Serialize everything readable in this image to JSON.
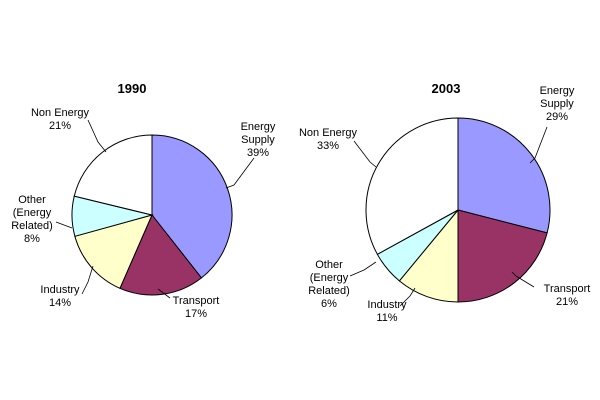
{
  "chart_data": [
    {
      "type": "pie",
      "title": "1990",
      "slices": [
        {
          "name": "Energy Supply",
          "label_lines": [
            "Energy",
            "Supply"
          ],
          "value": 39,
          "value_label": "39%",
          "color": "#9999ff"
        },
        {
          "name": "Transport",
          "label_lines": [
            "Transport"
          ],
          "value": 17,
          "value_label": "17%",
          "color": "#993366"
        },
        {
          "name": "Industry",
          "label_lines": [
            "Industry"
          ],
          "value": 14,
          "value_label": "14%",
          "color": "#ffffcc"
        },
        {
          "name": "Other (Energy Related)",
          "label_lines": [
            "Other",
            "(Energy",
            "Related)"
          ],
          "value": 8,
          "value_label": "8%",
          "color": "#ccffff"
        },
        {
          "name": "Non Energy",
          "label_lines": [
            "Non Energy"
          ],
          "value": 21,
          "value_label": "21%",
          "color": "#ffffff"
        }
      ]
    },
    {
      "type": "pie",
      "title": "2003",
      "slices": [
        {
          "name": "Energy Supply",
          "label_lines": [
            "Energy",
            "Supply"
          ],
          "value": 29,
          "value_label": "29%",
          "color": "#9999ff"
        },
        {
          "name": "Transport",
          "label_lines": [
            "Transport"
          ],
          "value": 21,
          "value_label": "21%",
          "color": "#993366"
        },
        {
          "name": "Industry",
          "label_lines": [
            "Industry"
          ],
          "value": 11,
          "value_label": "11%",
          "color": "#ffffcc"
        },
        {
          "name": "Other (Energy Related)",
          "label_lines": [
            "Other",
            "(Energy",
            "Related)"
          ],
          "value": 6,
          "value_label": "6%",
          "color": "#ccffff"
        },
        {
          "name": "Non Energy",
          "label_lines": [
            "Non Energy"
          ],
          "value": 33,
          "value_label": "33%",
          "color": "#ffffff"
        }
      ]
    }
  ]
}
